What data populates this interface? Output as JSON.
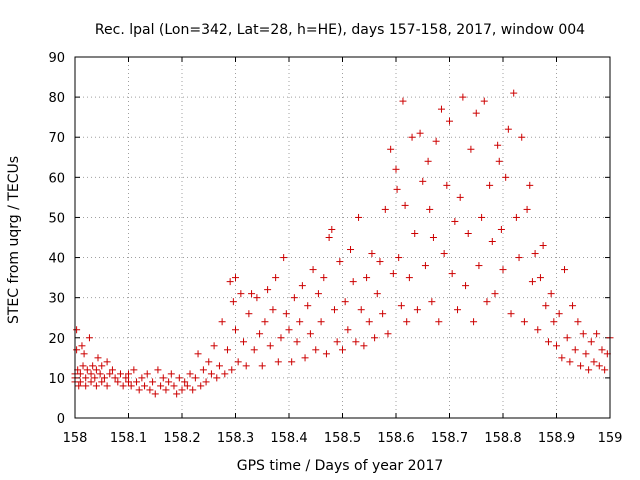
{
  "chart_data": {
    "type": "scatter",
    "title": "Rec. lpal (Lon=342, Lat=28, h=HE), days 157-158, 2017, window 004",
    "xlabel": "GPS time / Days of year 2017",
    "ylabel": "STEC from uqrg / TECUs",
    "xlim": [
      158,
      159
    ],
    "ylim": [
      0,
      90
    ],
    "x_ticks": [
      "158",
      "158.1",
      "158.2",
      "158.3",
      "158.4",
      "158.5",
      "158.6",
      "158.7",
      "158.8",
      "158.9",
      "159"
    ],
    "y_ticks": [
      "0",
      "10",
      "20",
      "30",
      "40",
      "50",
      "60",
      "70",
      "80",
      "90"
    ],
    "grid": true,
    "marker": "plus",
    "color": "#cc0000",
    "points": [
      [
        158.0,
        11
      ],
      [
        158.0,
        10
      ],
      [
        158.0,
        9
      ],
      [
        158.003,
        17
      ],
      [
        158.003,
        22
      ],
      [
        158.005,
        12
      ],
      [
        158.007,
        8
      ],
      [
        158.01,
        11
      ],
      [
        158.01,
        9
      ],
      [
        158.013,
        18
      ],
      [
        158.015,
        13
      ],
      [
        158.017,
        16
      ],
      [
        158.02,
        10
      ],
      [
        158.02,
        8
      ],
      [
        158.023,
        12
      ],
      [
        158.027,
        20
      ],
      [
        158.03,
        11
      ],
      [
        158.03,
        9
      ],
      [
        158.033,
        13
      ],
      [
        158.037,
        10
      ],
      [
        158.04,
        12
      ],
      [
        158.04,
        8
      ],
      [
        158.043,
        15
      ],
      [
        158.047,
        11
      ],
      [
        158.05,
        13
      ],
      [
        158.05,
        9
      ],
      [
        158.055,
        10
      ],
      [
        158.06,
        14
      ],
      [
        158.06,
        8
      ],
      [
        158.065,
        11
      ],
      [
        158.07,
        12
      ],
      [
        158.075,
        10
      ],
      [
        158.08,
        9
      ],
      [
        158.085,
        11
      ],
      [
        158.09,
        8
      ],
      [
        158.095,
        10
      ],
      [
        158.1,
        9
      ],
      [
        158.1,
        11
      ],
      [
        158.105,
        8
      ],
      [
        158.11,
        12
      ],
      [
        158.115,
        9
      ],
      [
        158.12,
        7
      ],
      [
        158.125,
        10
      ],
      [
        158.13,
        8
      ],
      [
        158.135,
        11
      ],
      [
        158.14,
        7
      ],
      [
        158.145,
        9
      ],
      [
        158.15,
        6
      ],
      [
        158.155,
        12
      ],
      [
        158.16,
        8
      ],
      [
        158.165,
        10
      ],
      [
        158.17,
        7
      ],
      [
        158.175,
        9
      ],
      [
        158.18,
        11
      ],
      [
        158.185,
        8
      ],
      [
        158.19,
        6
      ],
      [
        158.195,
        10
      ],
      [
        158.2,
        7
      ],
      [
        158.205,
        9
      ],
      [
        158.21,
        8
      ],
      [
        158.215,
        11
      ],
      [
        158.22,
        7
      ],
      [
        158.225,
        10
      ],
      [
        158.23,
        16
      ],
      [
        158.235,
        8
      ],
      [
        158.24,
        12
      ],
      [
        158.245,
        9
      ],
      [
        158.25,
        14
      ],
      [
        158.255,
        11
      ],
      [
        158.26,
        18
      ],
      [
        158.265,
        10
      ],
      [
        158.27,
        13
      ],
      [
        158.275,
        24
      ],
      [
        158.28,
        11
      ],
      [
        158.285,
        17
      ],
      [
        158.29,
        34
      ],
      [
        158.293,
        12
      ],
      [
        158.296,
        29
      ],
      [
        158.3,
        35
      ],
      [
        158.3,
        22
      ],
      [
        158.305,
        14
      ],
      [
        158.31,
        31
      ],
      [
        158.315,
        19
      ],
      [
        158.32,
        13
      ],
      [
        158.325,
        26
      ],
      [
        158.33,
        31
      ],
      [
        158.335,
        17
      ],
      [
        158.34,
        30
      ],
      [
        158.345,
        21
      ],
      [
        158.35,
        13
      ],
      [
        158.355,
        24
      ],
      [
        158.36,
        32
      ],
      [
        158.365,
        18
      ],
      [
        158.37,
        27
      ],
      [
        158.375,
        35
      ],
      [
        158.38,
        14
      ],
      [
        158.385,
        20
      ],
      [
        158.39,
        40
      ],
      [
        158.395,
        26
      ],
      [
        158.4,
        22
      ],
      [
        158.405,
        14
      ],
      [
        158.41,
        30
      ],
      [
        158.415,
        19
      ],
      [
        158.42,
        24
      ],
      [
        158.425,
        33
      ],
      [
        158.43,
        15
      ],
      [
        158.435,
        28
      ],
      [
        158.44,
        21
      ],
      [
        158.445,
        37
      ],
      [
        158.45,
        17
      ],
      [
        158.455,
        31
      ],
      [
        158.46,
        24
      ],
      [
        158.465,
        35
      ],
      [
        158.47,
        16
      ],
      [
        158.475,
        45
      ],
      [
        158.48,
        47
      ],
      [
        158.485,
        27
      ],
      [
        158.49,
        19
      ],
      [
        158.495,
        39
      ],
      [
        158.5,
        17
      ],
      [
        158.505,
        29
      ],
      [
        158.51,
        22
      ],
      [
        158.515,
        42
      ],
      [
        158.52,
        34
      ],
      [
        158.525,
        19
      ],
      [
        158.53,
        50
      ],
      [
        158.535,
        27
      ],
      [
        158.54,
        18
      ],
      [
        158.545,
        35
      ],
      [
        158.55,
        24
      ],
      [
        158.555,
        41
      ],
      [
        158.56,
        20
      ],
      [
        158.565,
        31
      ],
      [
        158.57,
        39
      ],
      [
        158.575,
        26
      ],
      [
        158.58,
        52
      ],
      [
        158.585,
        21
      ],
      [
        158.59,
        67
      ],
      [
        158.595,
        36
      ],
      [
        158.6,
        62
      ],
      [
        158.602,
        57
      ],
      [
        158.605,
        40
      ],
      [
        158.61,
        28
      ],
      [
        158.613,
        79
      ],
      [
        158.617,
        53
      ],
      [
        158.62,
        24
      ],
      [
        158.625,
        35
      ],
      [
        158.63,
        70
      ],
      [
        158.635,
        46
      ],
      [
        158.64,
        27
      ],
      [
        158.645,
        71
      ],
      [
        158.65,
        59
      ],
      [
        158.655,
        38
      ],
      [
        158.66,
        64
      ],
      [
        158.663,
        52
      ],
      [
        158.667,
        29
      ],
      [
        158.67,
        45
      ],
      [
        158.675,
        69
      ],
      [
        158.68,
        24
      ],
      [
        158.685,
        77
      ],
      [
        158.69,
        41
      ],
      [
        158.695,
        58
      ],
      [
        158.7,
        74
      ],
      [
        158.705,
        36
      ],
      [
        158.71,
        49
      ],
      [
        158.715,
        27
      ],
      [
        158.72,
        55
      ],
      [
        158.725,
        80
      ],
      [
        158.73,
        33
      ],
      [
        158.735,
        46
      ],
      [
        158.74,
        67
      ],
      [
        158.745,
        24
      ],
      [
        158.75,
        76
      ],
      [
        158.755,
        38
      ],
      [
        158.76,
        50
      ],
      [
        158.765,
        79
      ],
      [
        158.77,
        29
      ],
      [
        158.775,
        58
      ],
      [
        158.78,
        44
      ],
      [
        158.785,
        31
      ],
      [
        158.79,
        68
      ],
      [
        158.793,
        64
      ],
      [
        158.797,
        47
      ],
      [
        158.8,
        37
      ],
      [
        158.805,
        60
      ],
      [
        158.81,
        72
      ],
      [
        158.815,
        26
      ],
      [
        158.82,
        81
      ],
      [
        158.825,
        50
      ],
      [
        158.83,
        40
      ],
      [
        158.835,
        70
      ],
      [
        158.84,
        24
      ],
      [
        158.845,
        52
      ],
      [
        158.85,
        58
      ],
      [
        158.855,
        34
      ],
      [
        158.86,
        41
      ],
      [
        158.865,
        22
      ],
      [
        158.87,
        35
      ],
      [
        158.875,
        43
      ],
      [
        158.88,
        28
      ],
      [
        158.885,
        19
      ],
      [
        158.89,
        31
      ],
      [
        158.895,
        24
      ],
      [
        158.9,
        18
      ],
      [
        158.905,
        26
      ],
      [
        158.91,
        15
      ],
      [
        158.915,
        37
      ],
      [
        158.92,
        20
      ],
      [
        158.925,
        14
      ],
      [
        158.93,
        28
      ],
      [
        158.935,
        17
      ],
      [
        158.94,
        24
      ],
      [
        158.945,
        13
      ],
      [
        158.95,
        21
      ],
      [
        158.955,
        16
      ],
      [
        158.96,
        12
      ],
      [
        158.965,
        19
      ],
      [
        158.97,
        14
      ],
      [
        158.975,
        21
      ],
      [
        158.98,
        13
      ],
      [
        158.985,
        17
      ],
      [
        158.99,
        12
      ],
      [
        158.995,
        16
      ],
      [
        159.0,
        20
      ]
    ]
  }
}
